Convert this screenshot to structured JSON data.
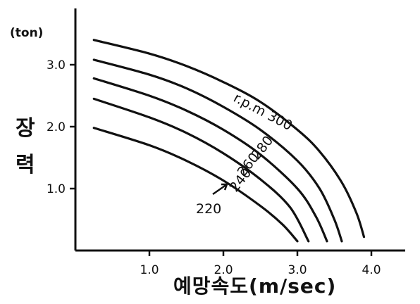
{
  "chart_data": {
    "type": "line",
    "unit_label": "(ton)",
    "ylabel": "장력",
    "xlabel": "예망속도(m/sec)",
    "xlim": [
      0,
      4.5
    ],
    "ylim": [
      0,
      3.6
    ],
    "x_ticks": [
      "1.0",
      "2.0",
      "3.0",
      "4.0"
    ],
    "y_ticks": [
      "1.0",
      "2.0",
      "3.0"
    ],
    "series": [
      {
        "name": "r.p.m 300",
        "x": [
          0.25,
          1.0,
          1.5,
          2.0,
          2.5,
          3.0,
          3.3,
          3.6,
          3.8,
          3.9
        ],
        "y": [
          3.4,
          3.18,
          2.98,
          2.72,
          2.4,
          1.95,
          1.6,
          1.1,
          0.6,
          0.22
        ]
      },
      {
        "name": "280",
        "x": [
          0.25,
          1.0,
          1.5,
          2.0,
          2.5,
          3.0,
          3.3,
          3.5,
          3.6
        ],
        "y": [
          3.08,
          2.84,
          2.62,
          2.32,
          1.95,
          1.45,
          1.0,
          0.5,
          0.15
        ]
      },
      {
        "name": "260",
        "x": [
          0.25,
          1.0,
          1.5,
          2.0,
          2.5,
          3.0,
          3.25,
          3.4
        ],
        "y": [
          2.78,
          2.5,
          2.26,
          1.95,
          1.55,
          1.0,
          0.55,
          0.15
        ]
      },
      {
        "name": "240",
        "x": [
          0.25,
          1.0,
          1.5,
          2.0,
          2.5,
          2.9,
          3.15
        ],
        "y": [
          2.45,
          2.15,
          1.9,
          1.57,
          1.15,
          0.7,
          0.15
        ]
      },
      {
        "name": "220",
        "x": [
          0.25,
          1.0,
          1.5,
          2.0,
          2.5,
          2.8,
          3.0
        ],
        "y": [
          1.98,
          1.7,
          1.45,
          1.13,
          0.72,
          0.42,
          0.15
        ]
      }
    ],
    "grid": false
  }
}
